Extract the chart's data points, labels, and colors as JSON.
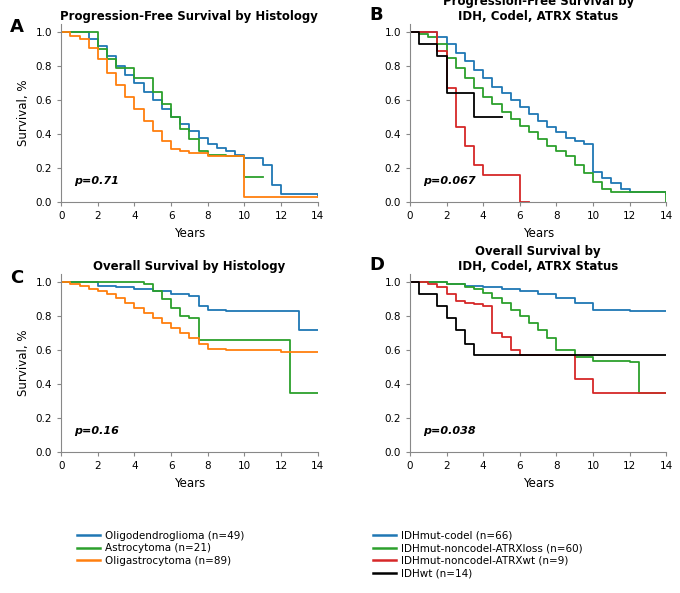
{
  "panel_A": {
    "title": "Progression-Free Survival by Histology",
    "pval": "p=0.71",
    "curves": {
      "Oligodendroglioma (n=49)": {
        "color": "#1f77b4",
        "x": [
          0,
          1,
          1.5,
          2,
          2.5,
          3,
          3.5,
          4,
          4.5,
          5,
          5.5,
          6,
          6.5,
          7,
          7.5,
          8,
          8.5,
          9,
          9.5,
          10,
          11,
          11.5,
          12,
          14
        ],
        "y": [
          1.0,
          1.0,
          0.96,
          0.92,
          0.86,
          0.8,
          0.75,
          0.7,
          0.65,
          0.6,
          0.55,
          0.5,
          0.46,
          0.42,
          0.38,
          0.34,
          0.32,
          0.3,
          0.28,
          0.26,
          0.22,
          0.1,
          0.05,
          0.03
        ]
      },
      "Astrocytoma (n=21)": {
        "color": "#2ca02c",
        "x": [
          0,
          1,
          1.5,
          2,
          2.5,
          3,
          4,
          5,
          5.5,
          6,
          6.5,
          7,
          7.5,
          8,
          9,
          10,
          11
        ],
        "y": [
          1.0,
          1.0,
          1.0,
          0.9,
          0.84,
          0.79,
          0.73,
          0.65,
          0.58,
          0.5,
          0.43,
          0.37,
          0.3,
          0.28,
          0.27,
          0.15,
          0.15
        ]
      },
      "Oligastrocytoma (n=89)": {
        "color": "#ff7f0e",
        "x": [
          0,
          0.5,
          1,
          1.5,
          2,
          2.5,
          3,
          3.5,
          4,
          4.5,
          5,
          5.5,
          6,
          6.5,
          7,
          8,
          9,
          10,
          11,
          14
        ],
        "y": [
          1.0,
          0.98,
          0.96,
          0.91,
          0.84,
          0.76,
          0.69,
          0.62,
          0.55,
          0.48,
          0.42,
          0.36,
          0.31,
          0.3,
          0.29,
          0.27,
          0.27,
          0.03,
          0.03,
          0.03
        ]
      }
    }
  },
  "panel_B": {
    "title": "Progression-Free Survival by\nIDH, Codel, ATRX Status",
    "pval": "p=0.067",
    "curves": {
      "IDHmut-codel (n=66)": {
        "color": "#1f77b4",
        "x": [
          0,
          1,
          1.5,
          2,
          2.5,
          3,
          3.5,
          4,
          4.5,
          5,
          5.5,
          6,
          6.5,
          7,
          7.5,
          8,
          8.5,
          9,
          9.5,
          10,
          10.5,
          11,
          11.5,
          12,
          14
        ],
        "y": [
          1.0,
          1.0,
          0.97,
          0.93,
          0.88,
          0.83,
          0.78,
          0.73,
          0.68,
          0.64,
          0.6,
          0.56,
          0.52,
          0.48,
          0.44,
          0.41,
          0.38,
          0.36,
          0.34,
          0.18,
          0.14,
          0.11,
          0.08,
          0.06,
          0.05
        ]
      },
      "IDHmut-noncodel-ATRXloss (n=60)": {
        "color": "#2ca02c",
        "x": [
          0,
          0.5,
          1,
          1.5,
          2,
          2.5,
          3,
          3.5,
          4,
          4.5,
          5,
          5.5,
          6,
          6.5,
          7,
          7.5,
          8,
          8.5,
          9,
          9.5,
          10,
          10.5,
          11,
          14
        ],
        "y": [
          1.0,
          0.99,
          0.97,
          0.93,
          0.85,
          0.79,
          0.73,
          0.67,
          0.62,
          0.58,
          0.53,
          0.49,
          0.45,
          0.41,
          0.37,
          0.33,
          0.3,
          0.27,
          0.22,
          0.17,
          0.12,
          0.08,
          0.06,
          0.0
        ]
      },
      "IDHmut-noncodel-ATRXwt (n=9)": {
        "color": "#d62728",
        "x": [
          0,
          1,
          1.5,
          2,
          2.5,
          3,
          3.5,
          4,
          5,
          6,
          6.5
        ],
        "y": [
          1.0,
          1.0,
          0.89,
          0.67,
          0.44,
          0.33,
          0.22,
          0.16,
          0.16,
          0.0,
          0.0
        ]
      },
      "IDHwt (n=14)": {
        "color": "#000000",
        "x": [
          0,
          0.5,
          1,
          1.5,
          2,
          2.5,
          3,
          3.5,
          4,
          4.5,
          5
        ],
        "y": [
          1.0,
          0.93,
          0.93,
          0.86,
          0.64,
          0.64,
          0.64,
          0.5,
          0.5,
          0.5,
          0.5
        ]
      }
    }
  },
  "panel_C": {
    "title": "Overall Survival by Histology",
    "pval": "p=0.16",
    "curves": {
      "Oligodendroglioma (n=49)": {
        "color": "#1f77b4",
        "x": [
          0,
          1,
          2,
          3,
          4,
          5,
          6,
          7,
          7.5,
          8,
          9,
          10,
          12,
          13,
          14
        ],
        "y": [
          1.0,
          1.0,
          0.98,
          0.97,
          0.96,
          0.95,
          0.93,
          0.92,
          0.86,
          0.84,
          0.83,
          0.83,
          0.83,
          0.72,
          0.72
        ]
      },
      "Astrocytoma (n=21)": {
        "color": "#2ca02c",
        "x": [
          0,
          1,
          2,
          3,
          4,
          4.5,
          5,
          5.5,
          6,
          6.5,
          7,
          7.5,
          8,
          9,
          10,
          12,
          12.5,
          14
        ],
        "y": [
          1.0,
          1.0,
          1.0,
          1.0,
          1.0,
          0.99,
          0.95,
          0.9,
          0.85,
          0.8,
          0.79,
          0.66,
          0.66,
          0.66,
          0.66,
          0.66,
          0.35,
          0.35
        ]
      },
      "Oligastrocytoma (n=89)": {
        "color": "#ff7f0e",
        "x": [
          0,
          0.5,
          1,
          1.5,
          2,
          2.5,
          3,
          3.5,
          4,
          4.5,
          5,
          5.5,
          6,
          6.5,
          7,
          7.5,
          8,
          9,
          10,
          12,
          14
        ],
        "y": [
          1.0,
          0.99,
          0.98,
          0.96,
          0.95,
          0.93,
          0.91,
          0.88,
          0.85,
          0.82,
          0.79,
          0.76,
          0.73,
          0.7,
          0.67,
          0.64,
          0.61,
          0.6,
          0.6,
          0.59,
          0.59
        ]
      }
    }
  },
  "panel_D": {
    "title": "Overall Survival by\nIDH, Codel, ATRX Status",
    "pval": "p=0.038",
    "curves": {
      "IDHmut-codel (n=66)": {
        "color": "#1f77b4",
        "x": [
          0,
          1,
          2,
          3,
          4,
          5,
          6,
          7,
          8,
          9,
          10,
          12,
          14
        ],
        "y": [
          1.0,
          1.0,
          0.99,
          0.98,
          0.97,
          0.96,
          0.95,
          0.93,
          0.91,
          0.88,
          0.84,
          0.83,
          0.83
        ]
      },
      "IDHmut-noncodel-ATRXloss (n=60)": {
        "color": "#2ca02c",
        "x": [
          0,
          1,
          2,
          3,
          3.5,
          4,
          4.5,
          5,
          5.5,
          6,
          6.5,
          7,
          7.5,
          8,
          9,
          10,
          12,
          12.5,
          14
        ],
        "y": [
          1.0,
          1.0,
          0.99,
          0.97,
          0.96,
          0.94,
          0.91,
          0.88,
          0.84,
          0.8,
          0.76,
          0.72,
          0.67,
          0.6,
          0.56,
          0.54,
          0.53,
          0.35,
          0.35
        ]
      },
      "IDHmut-noncodel-ATRXwt (n=9)": {
        "color": "#d62728",
        "x": [
          0,
          1,
          1.5,
          2,
          2.5,
          3,
          3.5,
          4,
          4.5,
          5,
          5.5,
          6,
          6.5,
          7,
          7.5,
          8,
          9,
          10,
          12,
          14
        ],
        "y": [
          1.0,
          0.99,
          0.97,
          0.93,
          0.89,
          0.88,
          0.87,
          0.86,
          0.7,
          0.68,
          0.6,
          0.57,
          0.57,
          0.57,
          0.57,
          0.57,
          0.43,
          0.35,
          0.35,
          0.35
        ]
      },
      "IDHwt (n=14)": {
        "color": "#000000",
        "x": [
          0,
          0.5,
          1,
          1.5,
          2,
          2.5,
          3,
          3.5,
          4,
          5,
          6,
          8,
          14
        ],
        "y": [
          1.0,
          0.93,
          0.93,
          0.86,
          0.79,
          0.72,
          0.64,
          0.57,
          0.57,
          0.57,
          0.57,
          0.57,
          0.57
        ]
      }
    }
  },
  "legend_histology": [
    {
      "label": "Oligodendroglioma (n=49)",
      "color": "#1f77b4"
    },
    {
      "label": "Astrocytoma (n=21)",
      "color": "#2ca02c"
    },
    {
      "label": "Oligastrocytoma (n=89)",
      "color": "#ff7f0e"
    }
  ],
  "legend_molecular": [
    {
      "label": "IDHmut-codel (n=66)",
      "color": "#1f77b4"
    },
    {
      "label": "IDHmut-noncodel-ATRXloss (n=60)",
      "color": "#2ca02c"
    },
    {
      "label": "IDHmut-noncodel-ATRXwt (n=9)",
      "color": "#d62728"
    },
    {
      "label": "IDHwt (n=14)",
      "color": "#000000"
    }
  ],
  "xlim": [
    0,
    14
  ],
  "ylim": [
    0.0,
    1.05
  ],
  "xticks": [
    0,
    2,
    4,
    6,
    8,
    10,
    12,
    14
  ],
  "yticks": [
    0.0,
    0.2,
    0.4,
    0.6,
    0.8,
    1.0
  ],
  "xlabel": "Years",
  "ylabel": "Survival, %"
}
